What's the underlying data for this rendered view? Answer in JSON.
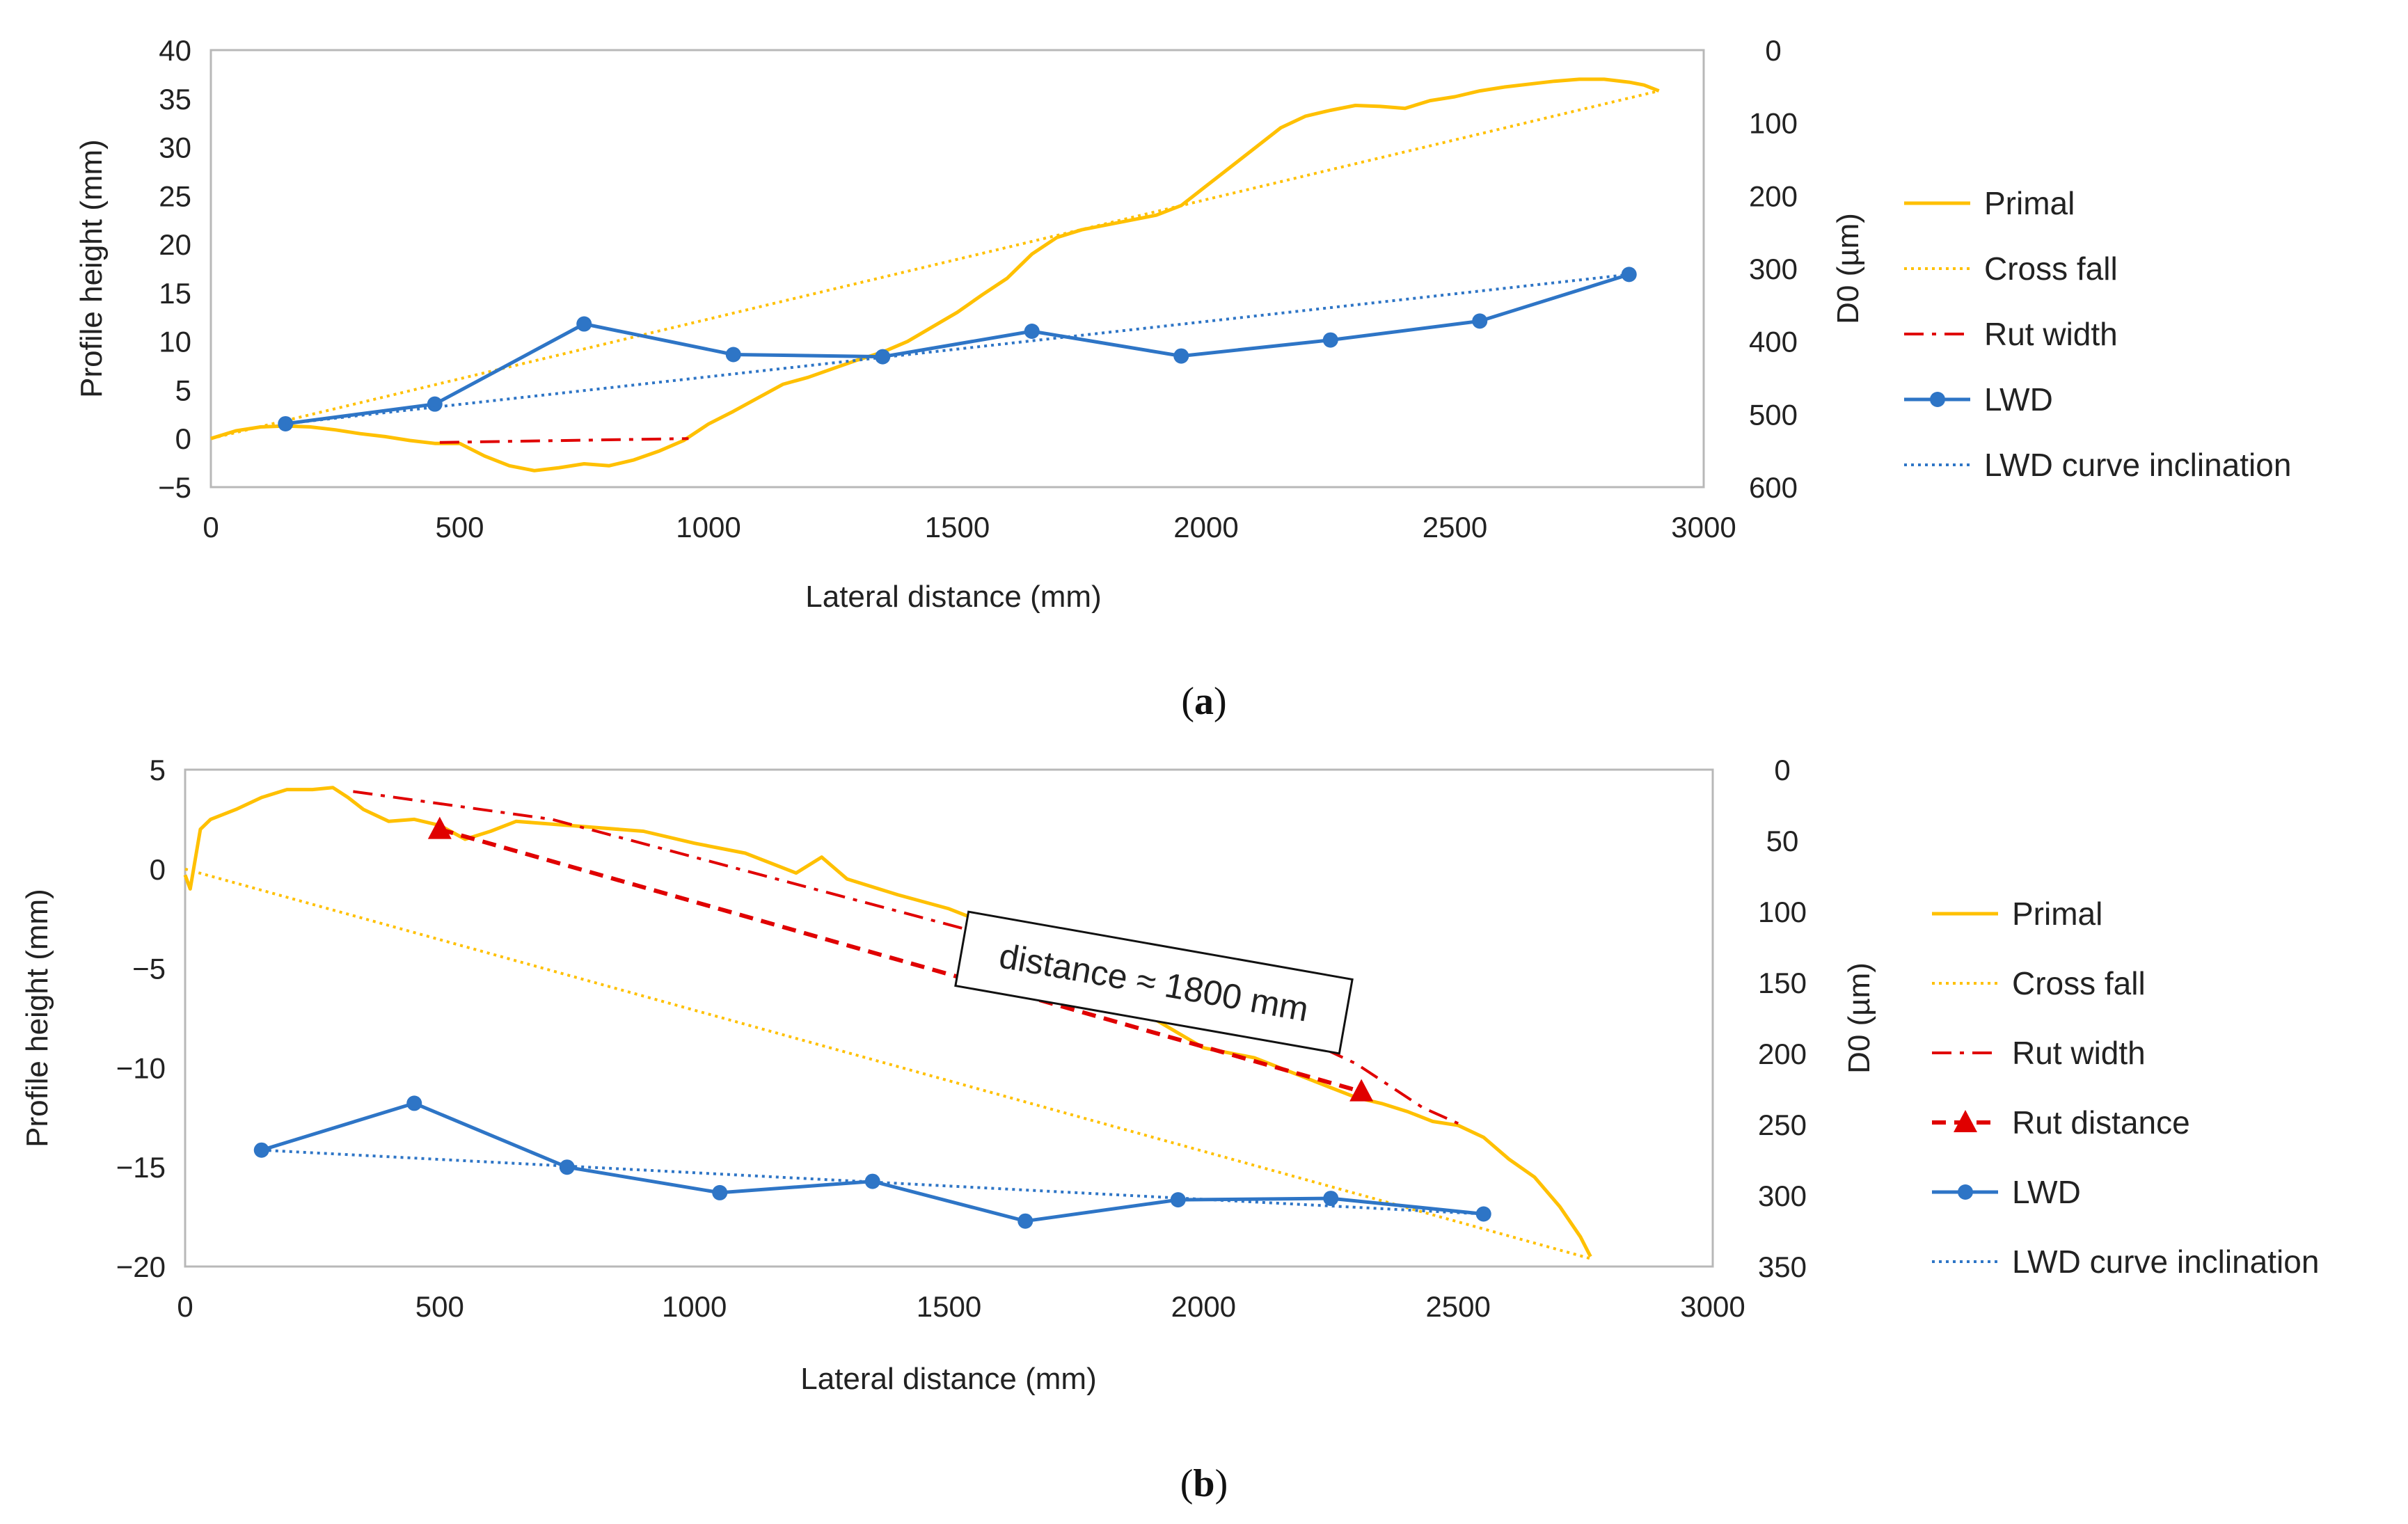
{
  "chart_data": [
    {
      "type": "line",
      "panel_label": "a",
      "xlabel": "Lateral distance (mm)",
      "ylabel": "Profile height (mm)",
      "y2label": "D0 (µm)",
      "xlim": [
        0,
        3000
      ],
      "ylim": [
        -5,
        40
      ],
      "y2lim": [
        0,
        600
      ],
      "y2_inverted": true,
      "x_ticks": [
        "0",
        "500",
        "1000",
        "1500",
        "2000",
        "2500",
        "3000"
      ],
      "y_ticks": [
        "−5",
        "0",
        "5",
        "10",
        "15",
        "20",
        "25",
        "30",
        "35",
        "40"
      ],
      "y2_ticks": [
        "0",
        "100",
        "200",
        "300",
        "400",
        "500",
        "600"
      ],
      "legend": [
        "Primal",
        "Cross fall",
        "Rut width",
        "LWD",
        "LWD curve inclination"
      ],
      "colors": {
        "primal": "#FFC000",
        "cross_fall": "#FFC000",
        "rut": "#E00000",
        "lwd": "#2E75C6",
        "lwd_incl": "#2E75C6"
      },
      "series": [
        {
          "name": "Primal",
          "axis": "left",
          "x": [
            0,
            50,
            100,
            150,
            200,
            250,
            300,
            350,
            400,
            450,
            500,
            550,
            600,
            650,
            700,
            750,
            800,
            850,
            900,
            950,
            1000,
            1050,
            1100,
            1150,
            1200,
            1250,
            1300,
            1350,
            1400,
            1450,
            1500,
            1550,
            1600,
            1650,
            1700,
            1750,
            1800,
            1850,
            1900,
            1950,
            2000,
            2050,
            2100,
            2150,
            2200,
            2250,
            2300,
            2350,
            2400,
            2450,
            2500,
            2550,
            2600,
            2650,
            2700,
            2750,
            2800,
            2850,
            2880,
            2910
          ],
          "y": [
            0,
            0.8,
            1.2,
            1.3,
            1.2,
            0.9,
            0.5,
            0.2,
            -0.2,
            -0.5,
            -0.5,
            -1.8,
            -2.8,
            -3.3,
            -3.0,
            -2.6,
            -2.8,
            -2.2,
            -1.3,
            -0.2,
            1.5,
            2.8,
            4.2,
            5.6,
            6.3,
            7.2,
            8.1,
            8.9,
            10.0,
            11.5,
            13.0,
            14.8,
            16.5,
            19.0,
            20.7,
            21.5,
            22.0,
            22.5,
            23.0,
            24.0,
            26.0,
            28.0,
            30.0,
            32.0,
            33.2,
            33.8,
            34.3,
            34.2,
            34.0,
            34.8,
            35.2,
            35.8,
            36.2,
            36.5,
            36.8,
            37.0,
            37.0,
            36.7,
            36.4,
            35.8
          ]
        },
        {
          "name": "Cross fall",
          "axis": "left",
          "x": [
            0,
            2910
          ],
          "y": [
            0,
            35.8
          ]
        },
        {
          "name": "Rut width",
          "axis": "left",
          "x": [
            460,
            960
          ],
          "y": [
            -0.4,
            0
          ]
        },
        {
          "name": "LWD",
          "axis": "right",
          "x": [
            150,
            450,
            750,
            1050,
            1350,
            1650,
            1950,
            2250,
            2550,
            2850
          ],
          "y": [
            513,
            486,
            376,
            418,
            421,
            386,
            420,
            398,
            372,
            308
          ]
        },
        {
          "name": "LWD curve inclination",
          "axis": "right",
          "x": [
            150,
            2850
          ],
          "y": [
            513,
            308
          ]
        }
      ]
    },
    {
      "type": "line",
      "panel_label": "b",
      "xlabel": "Lateral distance (mm)",
      "ylabel": "Profile height (mm)",
      "y2label": "D0 (µm)",
      "xlim": [
        0,
        3000
      ],
      "ylim": [
        -20,
        5
      ],
      "y2lim": [
        0,
        350
      ],
      "y2_inverted": true,
      "x_ticks": [
        "0",
        "500",
        "1000",
        "1500",
        "2000",
        "2500",
        "3000"
      ],
      "y_ticks": [
        "−20",
        "−15",
        "−10",
        "−5",
        "0",
        "5"
      ],
      "y2_ticks": [
        "0",
        "50",
        "100",
        "150",
        "200",
        "250",
        "300",
        "350"
      ],
      "legend": [
        "Primal",
        "Cross fall",
        "Rut width",
        "Rut distance",
        "LWD",
        "LWD curve inclination"
      ],
      "annotation": "distance ≈ 1800 mm",
      "series": [
        {
          "name": "Primal",
          "axis": "left",
          "x": [
            0,
            10,
            20,
            30,
            50,
            100,
            150,
            200,
            250,
            290,
            320,
            350,
            400,
            450,
            500,
            550,
            600,
            650,
            700,
            800,
            900,
            1000,
            1100,
            1200,
            1250,
            1300,
            1400,
            1500,
            1600,
            1700,
            1800,
            1900,
            2000,
            2100,
            2200,
            2250,
            2300,
            2350,
            2400,
            2450,
            2500,
            2550,
            2600,
            2650,
            2700,
            2740,
            2760
          ],
          "y": [
            -0.3,
            -1.0,
            0.5,
            2.0,
            2.5,
            3.0,
            3.6,
            4.0,
            4.0,
            4.1,
            3.6,
            3.0,
            2.4,
            2.5,
            2.2,
            1.5,
            1.9,
            2.4,
            2.3,
            2.1,
            1.9,
            1.3,
            0.8,
            -0.2,
            0.6,
            -0.5,
            -1.3,
            -2.0,
            -3.0,
            -4.5,
            -6.0,
            -7.5,
            -9.0,
            -9.5,
            -10.5,
            -11.0,
            -11.5,
            -11.8,
            -12.2,
            -12.7,
            -12.9,
            -13.5,
            -14.6,
            -15.5,
            -17.0,
            -18.5,
            -19.5
          ]
        },
        {
          "name": "Cross fall",
          "axis": "left",
          "x": [
            0,
            2760
          ],
          "y": [
            0,
            -19.6
          ]
        },
        {
          "name": "Rut width",
          "axis": "left",
          "x": [
            330,
            720,
            2000,
            2300,
            2430,
            2500
          ],
          "y": [
            3.9,
            2.5,
            -6.2,
            -9.8,
            -12.0,
            -12.8
          ]
        },
        {
          "name": "Rut distance",
          "axis": "left",
          "x": [
            500,
            2310
          ],
          "y": [
            2.0,
            -11.2
          ]
        },
        {
          "name": "LWD",
          "axis": "right",
          "x": [
            150,
            450,
            750,
            1050,
            1350,
            1650,
            1950,
            2250,
            2550
          ],
          "y": [
            268,
            235,
            280,
            298,
            290,
            318,
            303,
            302,
            313
          ]
        },
        {
          "name": "LWD curve inclination",
          "axis": "right",
          "x": [
            150,
            2550
          ],
          "y": [
            268,
            313
          ]
        }
      ]
    }
  ]
}
